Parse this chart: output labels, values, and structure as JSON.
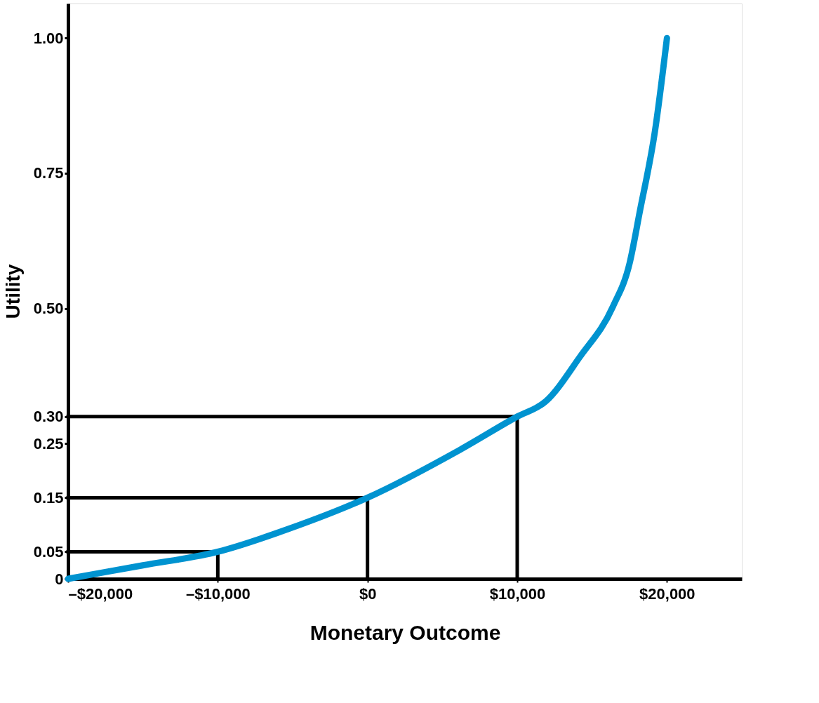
{
  "chart_data": {
    "type": "line",
    "xlabel": "Monetary Outcome",
    "ylabel": "Utility",
    "xlim": [
      -20000,
      25000
    ],
    "ylim": [
      0,
      1.064
    ],
    "xticks": [
      {
        "value": -20000,
        "label": "–$20,000"
      },
      {
        "value": -10000,
        "label": "–$10,000"
      },
      {
        "value": 0,
        "label": "$0"
      },
      {
        "value": 10000,
        "label": "$10,000"
      },
      {
        "value": 20000,
        "label": "$20,000"
      }
    ],
    "yticks": [
      0,
      0.05,
      0.15,
      {
        "value": 0.25,
        "label": "0.25"
      },
      {
        "value": 0.3,
        "label": "0.30"
      },
      {
        "value": 0.5,
        "label": "0.50"
      },
      0.75,
      {
        "value": 1,
        "label": "1.00"
      }
    ],
    "line_style": "solid",
    "series": [
      {
        "color": "#0093d0",
        "x": [
          -20000,
          -15000,
          -10000,
          -5300,
          0,
          6200,
          10000,
          11900,
          14200,
          16400,
          17500,
          18200,
          19200,
          20000
        ],
        "values": [
          0,
          0.025,
          0.05,
          0.092,
          0.15,
          0.239,
          0.3,
          0.328,
          0.411,
          0.504,
          0.583,
          0.681,
          0.828,
          1.0
        ]
      },
      {
        "color": "#000000",
        "x": [
          -20000,
          -10000,
          -10000
        ],
        "values": [
          0.05,
          0.05,
          0
        ]
      },
      {
        "color": "#000000",
        "x": [
          -20000,
          0,
          0
        ],
        "values": [
          0.15,
          0.15,
          0
        ]
      },
      {
        "color": "#000000",
        "x": [
          -20000,
          10000,
          10000
        ],
        "values": [
          0.3,
          0.3,
          0
        ]
      }
    ]
  }
}
